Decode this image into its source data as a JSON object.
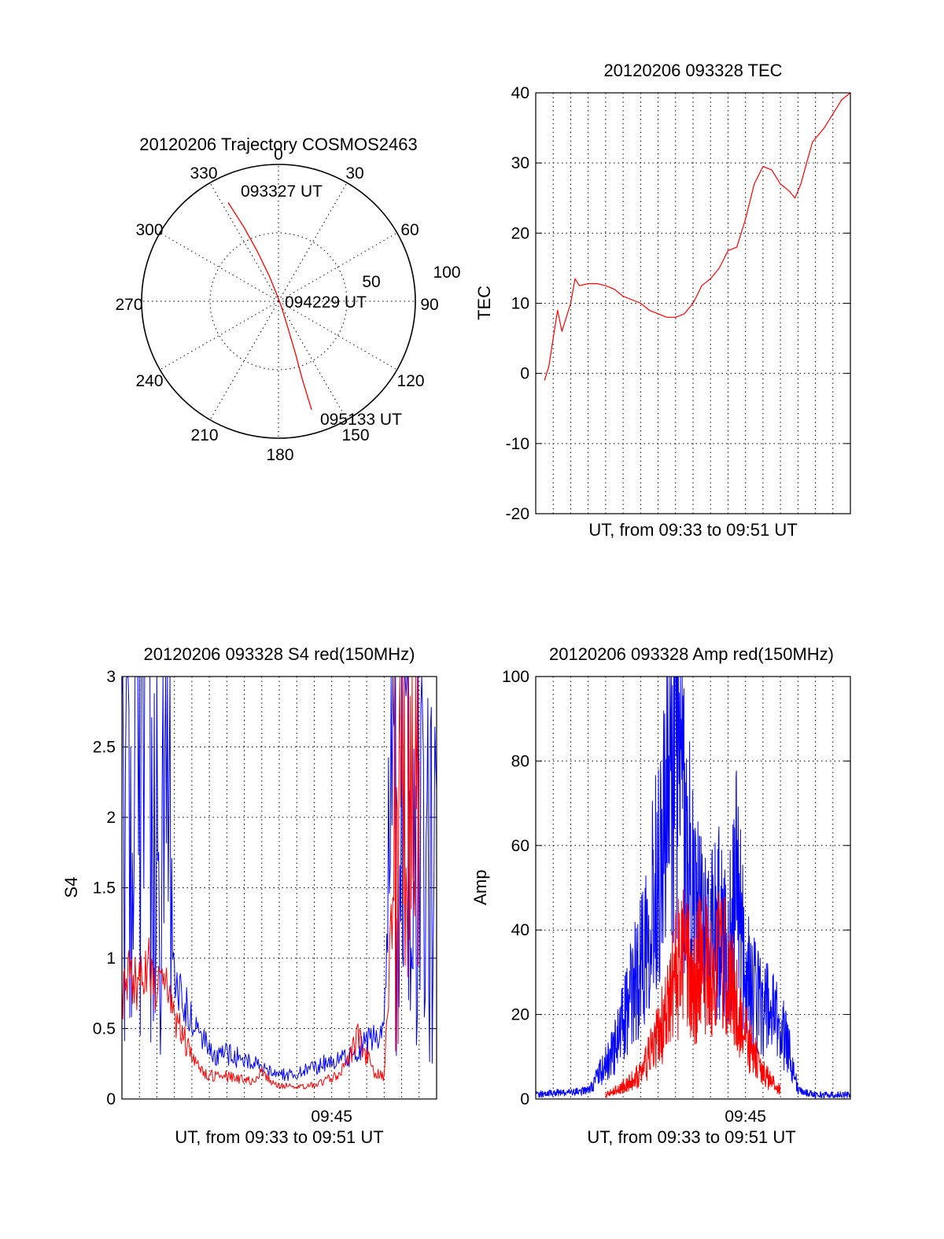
{
  "chart_data": [
    {
      "type": "polar",
      "title": "20120206 Trajectory COSMOS2463",
      "angle_labels": [
        "0",
        "30",
        "60",
        "90",
        "120",
        "150",
        "180",
        "210",
        "240",
        "270",
        "300",
        "330"
      ],
      "radius_labels": [
        "50",
        "100"
      ],
      "rlim": [
        0,
        100
      ],
      "grid": true,
      "series": [
        {
          "color": "#ff0000",
          "points": [
            {
              "azimuth": 333,
              "r": 81
            },
            {
              "azimuth": 335,
              "r": 60
            },
            {
              "azimuth": 337,
              "r": 40
            },
            {
              "azimuth": 340,
              "r": 20
            },
            {
              "azimuth": 345,
              "r": 6
            },
            {
              "azimuth": 150,
              "r": 4
            },
            {
              "azimuth": 160,
              "r": 18
            },
            {
              "azimuth": 162,
              "r": 40
            },
            {
              "azimuth": 163,
              "r": 60
            },
            {
              "azimuth": 163,
              "r": 83
            }
          ]
        }
      ],
      "annotations": [
        {
          "text": "093327 UT",
          "azimuth": 358,
          "r": 84
        },
        {
          "text": "094229 UT",
          "azimuth": 90,
          "r": 5
        },
        {
          "text": "095133 UT",
          "azimuth": 155,
          "r": 100
        }
      ]
    },
    {
      "type": "line",
      "title": "20120206 093328 TEC",
      "xlabel": "UT, from 09:33 to 09:51 UT",
      "ylabel": "TEC",
      "xlim": [
        "09:33",
        "09:51"
      ],
      "ylim": [
        -20,
        40
      ],
      "yticks": [
        -20,
        -10,
        0,
        10,
        20,
        30,
        40
      ],
      "grid": true,
      "series": [
        {
          "color": "#ff0000",
          "x": [
            "09:33:30",
            "09:33:45",
            "09:34:00",
            "09:34:15",
            "09:34:30",
            "09:34:45",
            "09:35:00",
            "09:35:15",
            "09:35:30",
            "09:36:00",
            "09:36:30",
            "09:37:00",
            "09:37:30",
            "09:38:00",
            "09:38:30",
            "09:39:00",
            "09:39:30",
            "09:40:00",
            "09:40:30",
            "09:41:00",
            "09:41:30",
            "09:42:00",
            "09:42:30",
            "09:43:00",
            "09:43:30",
            "09:44:00",
            "09:44:30",
            "09:45:00",
            "09:45:30",
            "09:46:00",
            "09:46:30",
            "09:47:00",
            "09:47:30",
            "09:47:50",
            "09:48:10",
            "09:48:30",
            "09:48:50",
            "09:49:10",
            "09:49:30",
            "09:50:00",
            "09:50:30",
            "09:51:00"
          ],
          "values": [
            -1,
            1,
            5,
            9,
            6,
            8,
            10,
            13.5,
            12.5,
            12.8,
            12.8,
            12.5,
            12,
            11,
            10.5,
            10,
            9,
            8.5,
            8,
            8,
            8.5,
            10,
            12.5,
            13.5,
            15,
            17.5,
            18,
            22,
            27,
            29.5,
            29,
            27,
            26,
            25,
            27,
            30,
            33,
            34,
            35,
            37,
            39,
            40
          ]
        }
      ]
    },
    {
      "type": "line",
      "title": "20120206 093328 S4 red(150MHz)",
      "xlabel": "UT, from 09:33 to 09:51 UT",
      "ylabel": "S4",
      "xlim": [
        "09:33",
        "09:51"
      ],
      "ylim": [
        0,
        3
      ],
      "yticks": [
        0,
        0.5,
        1,
        1.5,
        2,
        2.5,
        3
      ],
      "xticks": [
        "09:45"
      ],
      "grid": true,
      "series": [
        {
          "color": "#0000ff",
          "x": [
            "09:33:00",
            "09:33:30",
            "09:34:00",
            "09:34:30",
            "09:35:00",
            "09:35:30",
            "09:36:00",
            "09:36:30",
            "09:37:00",
            "09:37:30",
            "09:38:00",
            "09:38:30",
            "09:39:00",
            "09:39:30",
            "09:40:00",
            "09:40:30",
            "09:41:00",
            "09:41:30",
            "09:42:00",
            "09:42:30",
            "09:43:00",
            "09:43:30",
            "09:44:00",
            "09:44:30",
            "09:45:00",
            "09:45:30",
            "09:46:00",
            "09:46:30",
            "09:47:00",
            "09:47:30",
            "09:48:00",
            "09:48:30",
            "09:49:00",
            "09:49:30",
            "09:50:00",
            "09:50:30",
            "09:51:00"
          ],
          "values": [
            2.8,
            3,
            2.6,
            3,
            2.4,
            3,
            0.85,
            0.7,
            0.55,
            0.45,
            0.35,
            0.3,
            0.32,
            0.3,
            0.28,
            0.25,
            0.22,
            0.2,
            0.18,
            0.17,
            0.18,
            0.2,
            0.22,
            0.25,
            0.27,
            0.28,
            0.3,
            0.35,
            0.4,
            0.45,
            0.55,
            2.6,
            2.2,
            2.8,
            2.3,
            2.5,
            2.2
          ]
        },
        {
          "color": "#ff0000",
          "x": [
            "09:33:00",
            "09:33:30",
            "09:34:00",
            "09:34:30",
            "09:35:00",
            "09:35:30",
            "09:36:00",
            "09:36:30",
            "09:37:00",
            "09:37:30",
            "09:38:00",
            "09:38:30",
            "09:39:00",
            "09:39:30",
            "09:40:00",
            "09:40:30",
            "09:41:00",
            "09:41:30",
            "09:42:00",
            "09:42:30",
            "09:43:00",
            "09:43:30",
            "09:44:00",
            "09:44:30",
            "09:45:00",
            "09:45:30",
            "09:46:00",
            "09:46:30",
            "09:47:00",
            "09:47:30",
            "09:48:00",
            "09:48:30",
            "09:49:00",
            "09:49:30",
            "09:50:00"
          ],
          "values": [
            0.7,
            0.9,
            0.8,
            1.0,
            0.75,
            0.8,
            0.55,
            0.45,
            0.3,
            0.2,
            0.17,
            0.16,
            0.16,
            0.15,
            0.14,
            0.13,
            0.2,
            0.12,
            0.1,
            0.09,
            0.08,
            0.09,
            0.1,
            0.12,
            0.15,
            0.2,
            0.3,
            0.45,
            0.3,
            0.18,
            0.15,
            1.5,
            2.8,
            2.0,
            2.4
          ]
        }
      ]
    },
    {
      "type": "line",
      "title": "20120206 093328 Amp red(150MHz)",
      "xlabel": "UT, from 09:33 to 09:51 UT",
      "ylabel": "Amp",
      "xlim": [
        "09:33",
        "09:51"
      ],
      "ylim": [
        0,
        100
      ],
      "yticks": [
        0,
        20,
        40,
        60,
        80,
        100
      ],
      "xticks": [
        "09:45"
      ],
      "grid": true,
      "series": [
        {
          "color": "#0000ff",
          "x": [
            "09:33:00",
            "09:34:00",
            "09:35:00",
            "09:36:00",
            "09:37:00",
            "09:37:30",
            "09:38:00",
            "09:38:30",
            "09:39:00",
            "09:39:30",
            "09:40:00",
            "09:40:30",
            "09:41:00",
            "09:41:30",
            "09:42:00",
            "09:42:30",
            "09:43:00",
            "09:43:30",
            "09:44:00",
            "09:44:30",
            "09:45:00",
            "09:45:30",
            "09:46:00",
            "09:46:30",
            "09:47:00",
            "09:47:30",
            "09:48:00",
            "09:49:00",
            "09:50:00",
            "09:51:00"
          ],
          "values": [
            1,
            1.5,
            1.5,
            2,
            8,
            12,
            18,
            25,
            32,
            45,
            55,
            70,
            85,
            65,
            48,
            40,
            38,
            42,
            35,
            52,
            30,
            25,
            22,
            20,
            17,
            12,
            2,
            1,
            1,
            1
          ]
        },
        {
          "color": "#ff0000",
          "x": [
            "09:37:00",
            "09:38:00",
            "09:39:00",
            "09:39:30",
            "09:40:00",
            "09:40:30",
            "09:41:00",
            "09:41:30",
            "09:42:00",
            "09:42:30",
            "09:43:00",
            "09:43:30",
            "09:44:00",
            "09:44:30",
            "09:45:00",
            "09:45:30",
            "09:46:00",
            "09:46:30",
            "09:47:00"
          ],
          "values": [
            1,
            3,
            6,
            10,
            15,
            20,
            30,
            33,
            25,
            35,
            28,
            33,
            30,
            22,
            15,
            10,
            6,
            4,
            2
          ]
        }
      ]
    }
  ]
}
